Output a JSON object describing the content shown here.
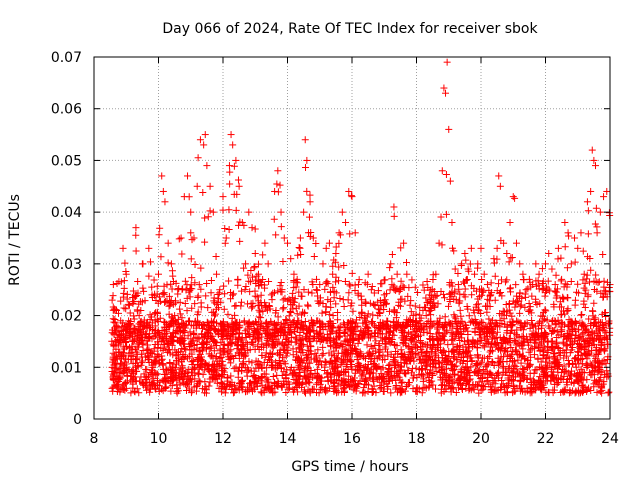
{
  "chart_data": {
    "type": "scatter",
    "title": "Day 066 of 2024, Rate Of TEC Index for receiver sbok",
    "xlabel": "GPS time / hours",
    "ylabel": "ROTI / TECUs",
    "xlim": [
      8,
      24
    ],
    "ylim": [
      0,
      0.07
    ],
    "xticks": [
      "8",
      "10",
      "12",
      "14",
      "16",
      "18",
      "20",
      "22",
      "24"
    ],
    "yticks": [
      "0",
      "0.01",
      "0.02",
      "0.03",
      "0.04",
      "0.05",
      "0.06",
      "0.07"
    ],
    "grid": true,
    "marker": "+",
    "color": "#ff0000",
    "series": [
      {
        "name": "ROTI",
        "points": [
          [
            8.6,
            0.026
          ],
          [
            8.7,
            0.018
          ],
          [
            8.8,
            0.012
          ],
          [
            8.9,
            0.033
          ],
          [
            9.0,
            0.028
          ],
          [
            9.1,
            0.022
          ],
          [
            9.2,
            0.015
          ],
          [
            9.3,
            0.037
          ],
          [
            9.4,
            0.02
          ],
          [
            9.5,
            0.03
          ],
          [
            9.6,
            0.012
          ],
          [
            9.7,
            0.033
          ],
          [
            9.8,
            0.024
          ],
          [
            9.9,
            0.018
          ],
          [
            10.0,
            0.028
          ],
          [
            10.1,
            0.047
          ],
          [
            10.15,
            0.044
          ],
          [
            10.2,
            0.042
          ],
          [
            10.3,
            0.034
          ],
          [
            10.4,
            0.03
          ],
          [
            10.5,
            0.02
          ],
          [
            10.6,
            0.025
          ],
          [
            10.7,
            0.035
          ],
          [
            10.8,
            0.043
          ],
          [
            10.9,
            0.047
          ],
          [
            11.0,
            0.036
          ],
          [
            11.1,
            0.035
          ],
          [
            11.2,
            0.045
          ],
          [
            11.3,
            0.054
          ],
          [
            11.4,
            0.053
          ],
          [
            11.45,
            0.055
          ],
          [
            11.5,
            0.049
          ],
          [
            11.6,
            0.045
          ],
          [
            11.7,
            0.04
          ],
          [
            11.8,
            0.028
          ],
          [
            11.9,
            0.025
          ],
          [
            12.0,
            0.043
          ],
          [
            12.1,
            0.035
          ],
          [
            12.2,
            0.049
          ],
          [
            12.25,
            0.055
          ],
          [
            12.3,
            0.053
          ],
          [
            12.4,
            0.05
          ],
          [
            12.5,
            0.045
          ],
          [
            12.6,
            0.038
          ],
          [
            12.7,
            0.03
          ],
          [
            12.8,
            0.04
          ],
          [
            12.9,
            0.037
          ],
          [
            13.0,
            0.032
          ],
          [
            13.1,
            0.028
          ],
          [
            13.2,
            0.026
          ],
          [
            13.3,
            0.034
          ],
          [
            13.4,
            0.03
          ],
          [
            13.5,
            0.024
          ],
          [
            13.6,
            0.044
          ],
          [
            13.7,
            0.048
          ],
          [
            13.8,
            0.04
          ],
          [
            13.9,
            0.035
          ],
          [
            14.0,
            0.034
          ],
          [
            14.1,
            0.031
          ],
          [
            14.2,
            0.028
          ],
          [
            14.3,
            0.027
          ],
          [
            14.4,
            0.035
          ],
          [
            14.5,
            0.04
          ],
          [
            14.55,
            0.054
          ],
          [
            14.6,
            0.05
          ],
          [
            14.7,
            0.042
          ],
          [
            14.8,
            0.035
          ],
          [
            14.9,
            0.027
          ],
          [
            15.0,
            0.026
          ],
          [
            15.1,
            0.03
          ],
          [
            15.2,
            0.033
          ],
          [
            15.3,
            0.034
          ],
          [
            15.4,
            0.028
          ],
          [
            15.5,
            0.032
          ],
          [
            15.6,
            0.036
          ],
          [
            15.7,
            0.04
          ],
          [
            15.8,
            0.038
          ],
          [
            15.9,
            0.044
          ],
          [
            16.0,
            0.043
          ],
          [
            16.1,
            0.036
          ],
          [
            16.2,
            0.026
          ],
          [
            16.3,
            0.022
          ],
          [
            16.4,
            0.02
          ],
          [
            16.5,
            0.028
          ],
          [
            16.6,
            0.025
          ],
          [
            16.7,
            0.018
          ],
          [
            16.8,
            0.02
          ],
          [
            16.9,
            0.022
          ],
          [
            17.0,
            0.024
          ],
          [
            17.1,
            0.018
          ],
          [
            17.2,
            0.03
          ],
          [
            17.3,
            0.041
          ],
          [
            17.4,
            0.028
          ],
          [
            17.5,
            0.025
          ],
          [
            17.6,
            0.034
          ],
          [
            17.7,
            0.028
          ],
          [
            17.8,
            0.022
          ],
          [
            17.9,
            0.02
          ],
          [
            18.0,
            0.018
          ],
          [
            18.1,
            0.019
          ],
          [
            18.2,
            0.021
          ],
          [
            18.3,
            0.02
          ],
          [
            18.4,
            0.024
          ],
          [
            18.5,
            0.022
          ],
          [
            18.6,
            0.028
          ],
          [
            18.7,
            0.034
          ],
          [
            18.8,
            0.048
          ],
          [
            18.85,
            0.064
          ],
          [
            18.9,
            0.063
          ],
          [
            18.95,
            0.069
          ],
          [
            19.0,
            0.056
          ],
          [
            19.05,
            0.046
          ],
          [
            19.1,
            0.038
          ],
          [
            19.2,
            0.029
          ],
          [
            19.3,
            0.026
          ],
          [
            19.4,
            0.03
          ],
          [
            19.5,
            0.032
          ],
          [
            19.6,
            0.029
          ],
          [
            19.7,
            0.033
          ],
          [
            19.8,
            0.028
          ],
          [
            19.9,
            0.03
          ],
          [
            20.0,
            0.033
          ],
          [
            20.1,
            0.028
          ],
          [
            20.2,
            0.026
          ],
          [
            20.3,
            0.024
          ],
          [
            20.4,
            0.031
          ],
          [
            20.5,
            0.033
          ],
          [
            20.55,
            0.047
          ],
          [
            20.6,
            0.045
          ],
          [
            20.7,
            0.034
          ],
          [
            20.8,
            0.032
          ],
          [
            20.9,
            0.038
          ],
          [
            21.0,
            0.043
          ],
          [
            21.1,
            0.034
          ],
          [
            21.2,
            0.03
          ],
          [
            21.3,
            0.028
          ],
          [
            21.4,
            0.025
          ],
          [
            21.5,
            0.027
          ],
          [
            21.6,
            0.026
          ],
          [
            21.7,
            0.03
          ],
          [
            21.8,
            0.028
          ],
          [
            21.9,
            0.025
          ],
          [
            22.0,
            0.03
          ],
          [
            22.1,
            0.032
          ],
          [
            22.2,
            0.029
          ],
          [
            22.3,
            0.026
          ],
          [
            22.4,
            0.033
          ],
          [
            22.5,
            0.027
          ],
          [
            22.6,
            0.038
          ],
          [
            22.7,
            0.036
          ],
          [
            22.8,
            0.03
          ],
          [
            22.9,
            0.035
          ],
          [
            23.0,
            0.033
          ],
          [
            23.1,
            0.036
          ],
          [
            23.2,
            0.028
          ],
          [
            23.3,
            0.042
          ],
          [
            23.4,
            0.044
          ],
          [
            23.45,
            0.052
          ],
          [
            23.5,
            0.05
          ],
          [
            23.55,
            0.049
          ],
          [
            23.6,
            0.036
          ],
          [
            23.7,
            0.04
          ],
          [
            23.8,
            0.043
          ],
          [
            23.9,
            0.044
          ],
          [
            24.0,
            0.026
          ]
        ]
      }
    ]
  }
}
